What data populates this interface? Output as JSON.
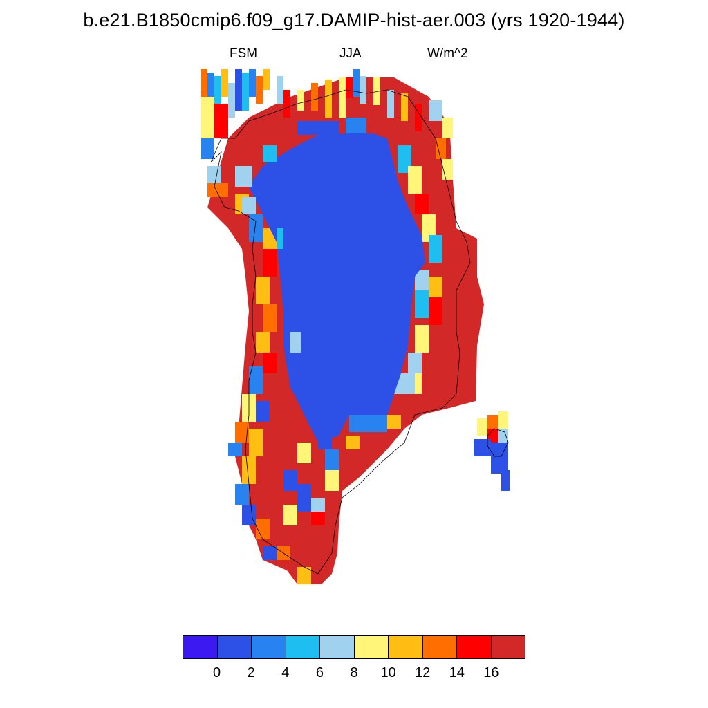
{
  "header": {
    "title": "b.e21.B1850cmip6.f09_g17.DAMIP-hist-aer.003 (yrs 1920-1944)",
    "left_label": "FSM",
    "center_label": "JJA",
    "right_label": "W/m^2"
  },
  "colorbar": {
    "colors": [
      "#3c19f0",
      "#2d50e6",
      "#2882f0",
      "#1ebef0",
      "#a0d2f0",
      "#fff578",
      "#ffbe14",
      "#ff6e00",
      "#ff0000",
      "#d22828"
    ],
    "tick_labels": [
      "0",
      "2",
      "4",
      "6",
      "8",
      "10",
      "12",
      "14",
      "16"
    ]
  },
  "map_style": {
    "interior": "#2d50e6",
    "outer_band": "#d22828",
    "coast_line": "#000000"
  }
}
